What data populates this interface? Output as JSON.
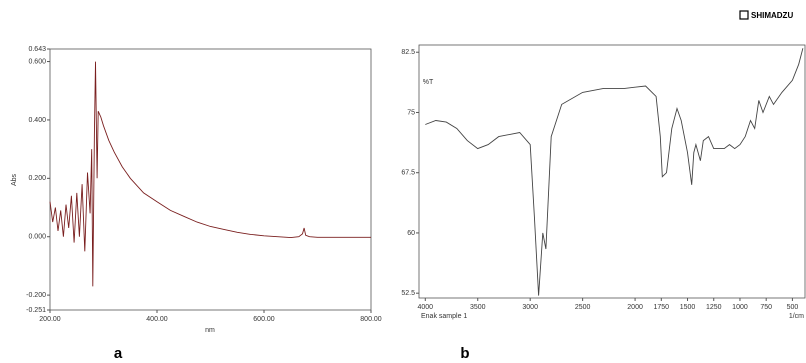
{
  "chart_data": [
    {
      "type": "line",
      "label": "a",
      "ylabel": "Abs",
      "xlabel": "nm",
      "x": [
        200,
        205,
        210,
        215,
        220,
        225,
        230,
        235,
        240,
        245,
        250,
        255,
        260,
        265,
        270,
        275,
        278,
        280,
        283,
        285,
        288,
        290,
        295,
        300,
        310,
        320,
        335,
        350,
        375,
        400,
        425,
        450,
        475,
        500,
        525,
        550,
        575,
        600,
        625,
        650,
        665,
        672,
        675,
        678,
        685,
        700,
        750,
        800
      ],
      "values": [
        0.12,
        0.05,
        0.1,
        0.02,
        0.09,
        0.0,
        0.11,
        0.03,
        0.14,
        -0.02,
        0.15,
        0.0,
        0.18,
        -0.05,
        0.22,
        0.08,
        0.3,
        -0.17,
        0.35,
        0.6,
        0.2,
        0.43,
        0.41,
        0.38,
        0.33,
        0.29,
        0.24,
        0.2,
        0.15,
        0.12,
        0.09,
        0.07,
        0.05,
        0.035,
        0.025,
        0.015,
        0.008,
        0.003,
        0.0,
        -0.003,
        0.0,
        0.01,
        0.03,
        0.005,
        0.0,
        -0.002,
        -0.002,
        -0.002
      ],
      "color": "#7a1f1f",
      "xlim": [
        200,
        800
      ],
      "ylim": [
        -0.251,
        0.643
      ],
      "xticks": [
        {
          "value": 200,
          "label": "200.00"
        },
        {
          "value": 400,
          "label": "400.00"
        },
        {
          "value": 600,
          "label": "600.00"
        },
        {
          "value": 800,
          "label": "800.00"
        }
      ],
      "yticks": [
        -0.251,
        {
          "value": -0.2,
          "label": "-0.200"
        },
        {
          "value": 0,
          "label": "0.000"
        },
        {
          "value": 0.2,
          "label": "0.200"
        },
        {
          "value": 0.4,
          "label": "0.400"
        },
        {
          "value": 0.6,
          "label": "0.600"
        },
        0.643
      ]
    },
    {
      "type": "line",
      "label": "b",
      "ylabel": "%T",
      "xlabel": "1/cm",
      "sample_name": "Enak sample 1",
      "brand": "SHIMADZU",
      "x": [
        4000,
        3900,
        3800,
        3700,
        3600,
        3500,
        3400,
        3300,
        3100,
        3000,
        2960,
        2920,
        2880,
        2850,
        2800,
        2700,
        2500,
        2300,
        2100,
        1900,
        1800,
        1760,
        1740,
        1700,
        1650,
        1600,
        1560,
        1500,
        1460,
        1440,
        1420,
        1377,
        1350,
        1300,
        1250,
        1200,
        1150,
        1100,
        1050,
        1000,
        950,
        900,
        860,
        820,
        780,
        720,
        680,
        600,
        500,
        440,
        400
      ],
      "values": [
        73.5,
        74,
        73.8,
        73,
        71.5,
        70.5,
        71,
        72,
        72.5,
        71,
        62,
        52.2,
        60,
        58,
        72,
        76,
        77.5,
        78,
        78,
        78.3,
        77,
        72,
        67,
        67.5,
        73,
        75.5,
        74,
        70,
        66,
        70,
        71,
        69,
        71.5,
        72,
        70.5,
        70.5,
        70.5,
        71,
        70.5,
        71,
        72,
        74,
        73,
        76.5,
        75,
        77,
        76,
        77.5,
        79,
        81,
        83
      ],
      "color": "#444444",
      "xlim": [
        4060,
        380
      ],
      "ylim": [
        51.9,
        83.4
      ],
      "xticks": [
        4000,
        3500,
        3000,
        2500,
        2000,
        1750,
        1500,
        1250,
        1000,
        750,
        500
      ],
      "yticks": [
        52.5,
        60,
        67.5,
        75,
        82.5
      ]
    }
  ]
}
